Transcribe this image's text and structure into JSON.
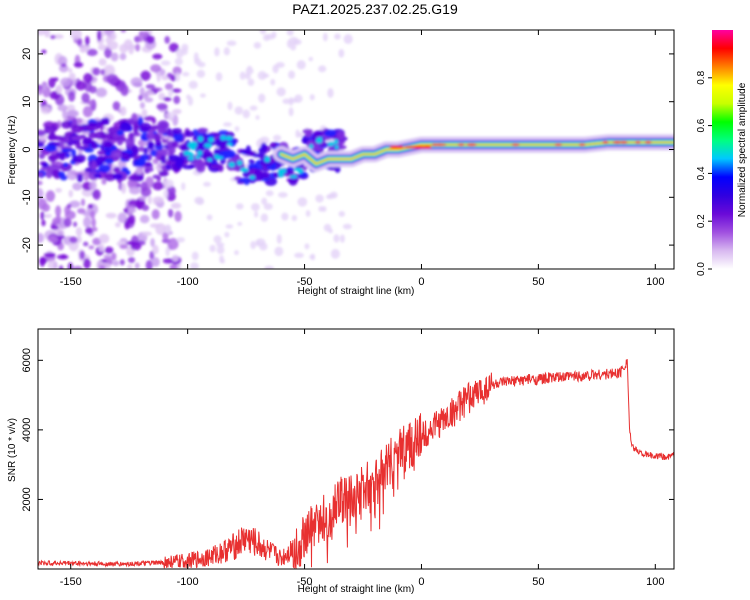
{
  "title": "PAZ1.2025.237.02.25.G19",
  "chart_data": [
    {
      "type": "heatmap",
      "xlabel": "Height of straight line (km)",
      "ylabel": "Frequency (Hz)",
      "xlim": [
        -164,
        108
      ],
      "ylim": [
        -25,
        25
      ],
      "xticks": [
        -150,
        -100,
        -50,
        0,
        50,
        100
      ],
      "yticks": [
        -20,
        -10,
        0,
        10,
        20
      ],
      "colorbar": {
        "label": "Normalized spectral amplitude",
        "range": [
          0,
          1
        ],
        "ticks": [
          0.0,
          0.2,
          0.4,
          0.6,
          0.8
        ],
        "colormap": [
          "#ffffff",
          "#d8b8f0",
          "#a050e0",
          "#6a0ad8",
          "#3000e0",
          "#0000ff",
          "#00c8ff",
          "#00ff80",
          "#00ff00",
          "#c8ff00",
          "#ffff00",
          "#ff8000",
          "#ff0000",
          "#ff00a0"
        ]
      },
      "traces": [
        {
          "name": "",
          "x": [
            -60,
            -55,
            -50,
            -45,
            -40,
            -35,
            -30,
            -25,
            -20,
            -15,
            -10,
            -5,
            0,
            5,
            10,
            20,
            30,
            40,
            50,
            60,
            70,
            80,
            90,
            100,
            108
          ],
          "y": [
            -1,
            -2,
            -1,
            -3,
            -2,
            -2,
            -2,
            -1,
            -1,
            0,
            0,
            0.5,
            1,
            1,
            1,
            1,
            1,
            1,
            1,
            1,
            1,
            1.5,
            1.5,
            1.5,
            1.5
          ]
        }
      ]
    },
    {
      "type": "line",
      "xlabel": "Height of straight line (km)",
      "ylabel": "SNR (10 * v/v)",
      "xlim": [
        -164,
        108
      ],
      "ylim": [
        0,
        6900
      ],
      "xticks": [
        -150,
        -100,
        -50,
        0,
        50,
        100
      ],
      "yticks": [
        2000,
        4000,
        6000
      ],
      "grid": false,
      "color": "#e83030",
      "series": [
        {
          "name": "",
          "x": [
            -164,
            -150,
            -140,
            -130,
            -120,
            -110,
            -100,
            -90,
            -85,
            -80,
            -75,
            -70,
            -65,
            -60,
            -55,
            -50,
            -45,
            -40,
            -35,
            -30,
            -25,
            -20,
            -15,
            -10,
            -5,
            0,
            5,
            10,
            15,
            20,
            25,
            30,
            35,
            40,
            45,
            50,
            55,
            60,
            65,
            70,
            75,
            80,
            85,
            88,
            89,
            90,
            95,
            100,
            105,
            108
          ],
          "y": [
            170,
            170,
            150,
            140,
            160,
            180,
            220,
            360,
            500,
            650,
            900,
            700,
            500,
            300,
            600,
            900,
            1300,
            1600,
            2000,
            2100,
            2300,
            2600,
            3000,
            3300,
            3600,
            3800,
            4100,
            4300,
            4600,
            4900,
            5100,
            5300,
            5350,
            5400,
            5450,
            5450,
            5500,
            5500,
            5550,
            5550,
            5600,
            5600,
            5650,
            6000,
            4000,
            3500,
            3300,
            3250,
            3200,
            3300
          ]
        }
      ]
    }
  ]
}
